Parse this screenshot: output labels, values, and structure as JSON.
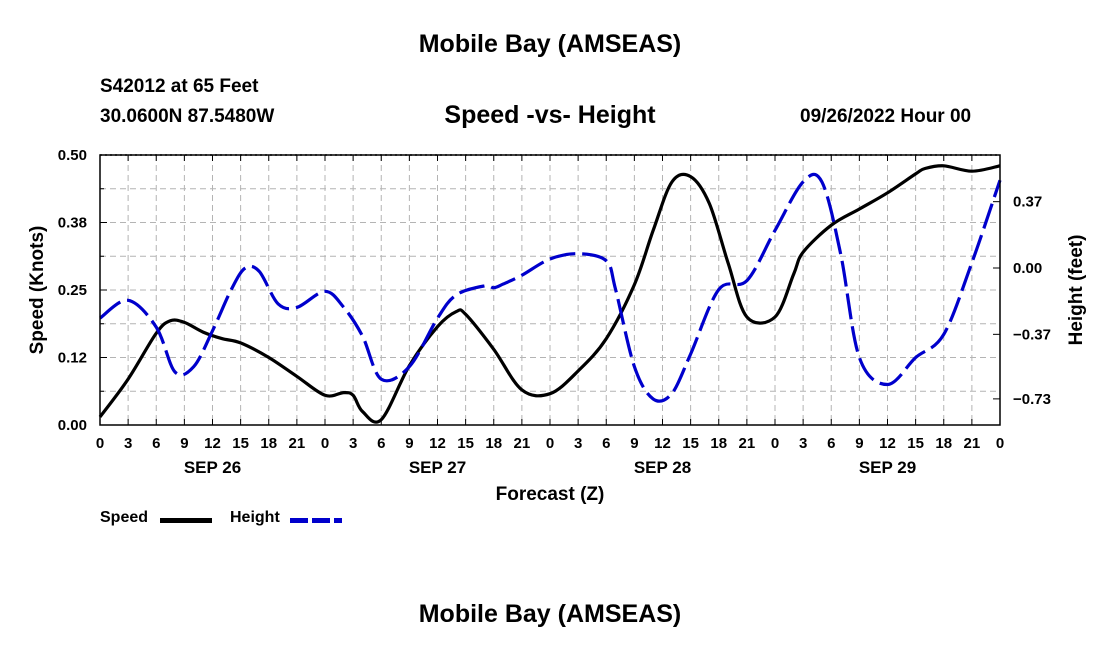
{
  "header": {
    "title": "Mobile Bay (AMSEAS)",
    "station": "S42012 at 65 Feet",
    "coords": "30.0600N  87.5480W",
    "run_time": "09/26/2022 Hour 00"
  },
  "footer": {
    "title": "Mobile Bay (AMSEAS)"
  },
  "legend": {
    "speed_label": "Speed",
    "height_label": "Height"
  },
  "colors": {
    "speed": "#000000",
    "height": "#0000cc",
    "grid": "#b4b4b4"
  },
  "chart_data": {
    "type": "line",
    "title": "Speed -vs- Height",
    "xlabel": "Forecast (Z)",
    "ylabel": "Speed (Knots)",
    "y2label": "Height (feet)",
    "xlim": [
      0,
      96
    ],
    "ylim": [
      0,
      0.5
    ],
    "y2lim": [
      -0.8757,
      0.6303
    ],
    "yticks": [
      0,
      0.125,
      0.25,
      0.375,
      0.5
    ],
    "ytick_labels": [
      "0.00",
      "0.12",
      "0.25",
      "0.38",
      "0.50"
    ],
    "y2ticks": [
      -0.73,
      -0.37,
      0,
      0.37
    ],
    "y2tick_labels": [
      "−0.73",
      "−0.37",
      "0.00",
      "0.37"
    ],
    "xticks": [
      0,
      3,
      6,
      9,
      12,
      15,
      18,
      21,
      24,
      27,
      30,
      33,
      36,
      39,
      42,
      45,
      48,
      51,
      54,
      57,
      60,
      63,
      66,
      69,
      72,
      75,
      78,
      81,
      84,
      87,
      90,
      93,
      96
    ],
    "xtick_labels": [
      "0",
      "3",
      "6",
      "9",
      "12",
      "15",
      "18",
      "21",
      "0",
      "3",
      "6",
      "9",
      "12",
      "15",
      "18",
      "21",
      "0",
      "3",
      "6",
      "9",
      "12",
      "15",
      "18",
      "21",
      "0",
      "3",
      "6",
      "9",
      "12",
      "15",
      "18",
      "21",
      "0"
    ],
    "date_labels": [
      {
        "x": 12,
        "label": "SEP 26"
      },
      {
        "x": 36,
        "label": "SEP 27"
      },
      {
        "x": 60,
        "label": "SEP 28"
      },
      {
        "x": 84,
        "label": "SEP 29"
      }
    ],
    "grid": true,
    "series": [
      {
        "name": "Speed",
        "axis": "left",
        "style": "solid",
        "x": [
          0,
          3,
          6,
          7.5,
          9,
          11,
          13,
          15,
          18,
          21,
          24,
          26,
          27,
          28,
          30,
          33,
          36,
          38,
          39,
          42,
          45,
          48,
          51,
          54,
          57,
          59,
          61,
          63,
          65,
          67,
          69,
          72,
          74,
          75,
          78,
          81,
          84,
          87,
          88,
          90,
          93,
          96
        ],
        "y": [
          0.015,
          0.085,
          0.17,
          0.193,
          0.19,
          0.172,
          0.16,
          0.152,
          0.125,
          0.09,
          0.055,
          0.06,
          0.055,
          0.025,
          0.01,
          0.11,
          0.182,
          0.21,
          0.205,
          0.14,
          0.065,
          0.058,
          0.1,
          0.16,
          0.26,
          0.36,
          0.45,
          0.46,
          0.41,
          0.3,
          0.2,
          0.2,
          0.28,
          0.32,
          0.37,
          0.4,
          0.43,
          0.465,
          0.475,
          0.48,
          0.47,
          0.48
        ]
      },
      {
        "name": "Height",
        "axis": "right",
        "style": "dashed",
        "x": [
          0,
          3,
          6,
          8,
          10,
          12,
          14,
          15.5,
          17,
          19,
          21,
          24,
          26,
          28,
          30,
          33,
          36,
          38,
          41,
          42,
          43,
          45,
          48,
          51,
          54,
          55,
          57,
          59,
          61,
          63,
          66,
          69,
          72,
          75,
          77,
          79,
          81,
          84,
          87,
          90,
          93,
          96
        ],
        "y": [
          -0.28,
          -0.18,
          -0.33,
          -0.58,
          -0.55,
          -0.35,
          -0.12,
          0.0,
          -0.02,
          -0.2,
          -0.22,
          -0.13,
          -0.22,
          -0.38,
          -0.62,
          -0.55,
          -0.28,
          -0.15,
          -0.1,
          -0.11,
          -0.09,
          -0.04,
          0.05,
          0.08,
          0.04,
          -0.12,
          -0.55,
          -0.73,
          -0.7,
          -0.48,
          -0.12,
          -0.07,
          0.21,
          0.48,
          0.48,
          0.08,
          -0.5,
          -0.65,
          -0.5,
          -0.37,
          0.03,
          0.49
        ]
      }
    ]
  }
}
